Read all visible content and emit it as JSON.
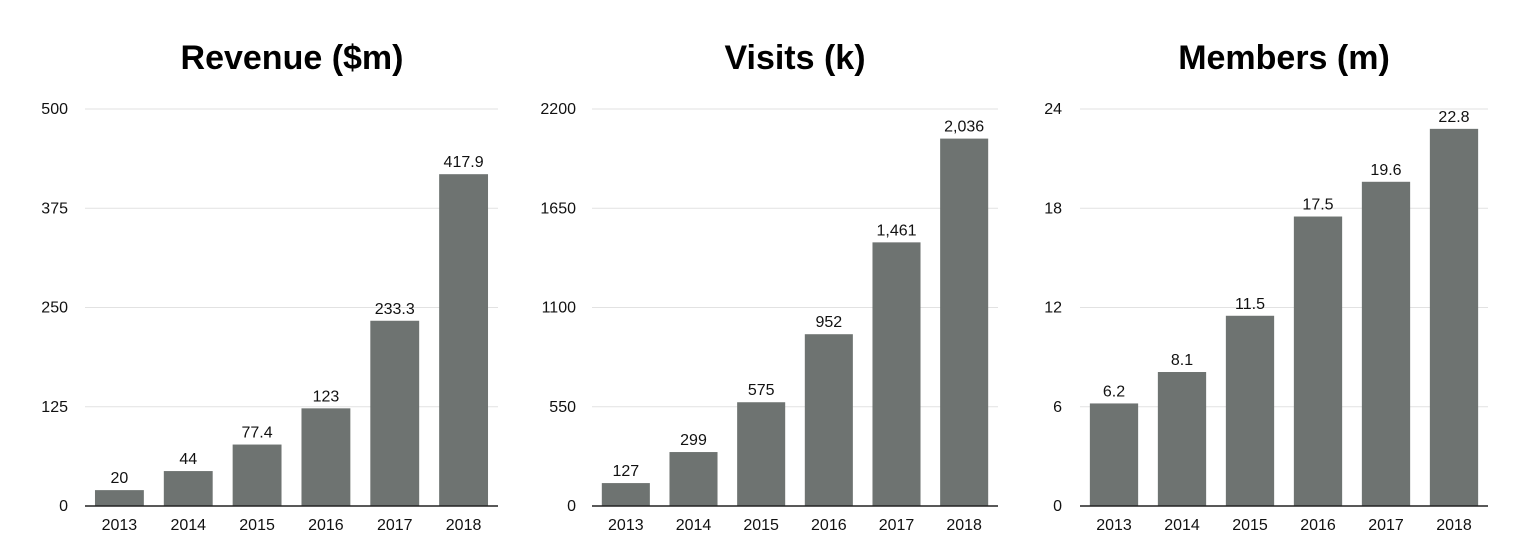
{
  "colors": {
    "bar": "#6e7371",
    "grid": "#e2e2e2",
    "axis": "#222222",
    "text": "#111111",
    "background": "#ffffff"
  },
  "chart_data": [
    {
      "type": "bar",
      "title": "Revenue ($m)",
      "xlabel": "",
      "ylabel": "",
      "categories": [
        "2013",
        "2014",
        "2015",
        "2016",
        "2017",
        "2018"
      ],
      "values": [
        20,
        44,
        77.4,
        123,
        233.3,
        417.9
      ],
      "value_labels": [
        "20",
        "44",
        "77.4",
        "123",
        "233.3",
        "417.9"
      ],
      "ylim": [
        0,
        500
      ],
      "yticks": [
        0,
        125,
        250,
        375,
        500
      ],
      "ytick_labels": [
        "0",
        "125",
        "250",
        "375",
        "500"
      ],
      "grid": true,
      "legend": "none"
    },
    {
      "type": "bar",
      "title": "Visits (k)",
      "xlabel": "",
      "ylabel": "",
      "categories": [
        "2013",
        "2014",
        "2015",
        "2016",
        "2017",
        "2018"
      ],
      "values": [
        127,
        299,
        575,
        952,
        1461,
        2036
      ],
      "value_labels": [
        "127",
        "299",
        "575",
        "952",
        "1,461",
        "2,036"
      ],
      "ylim": [
        0,
        2200
      ],
      "yticks": [
        0,
        550,
        1100,
        1650,
        2200
      ],
      "ytick_labels": [
        "0",
        "550",
        "1100",
        "1650",
        "2200"
      ],
      "grid": true,
      "legend": "none"
    },
    {
      "type": "bar",
      "title": "Members (m)",
      "xlabel": "",
      "ylabel": "",
      "categories": [
        "2013",
        "2014",
        "2015",
        "2016",
        "2017",
        "2018"
      ],
      "values": [
        6.2,
        8.1,
        11.5,
        17.5,
        19.6,
        22.8
      ],
      "value_labels": [
        "6.2",
        "8.1",
        "11.5",
        "17.5",
        "19.6",
        "22.8"
      ],
      "ylim": [
        0,
        24
      ],
      "yticks": [
        0,
        6,
        12,
        18,
        24
      ],
      "ytick_labels": [
        "0",
        "6",
        "12",
        "18",
        "24"
      ],
      "grid": true,
      "legend": "none"
    }
  ]
}
